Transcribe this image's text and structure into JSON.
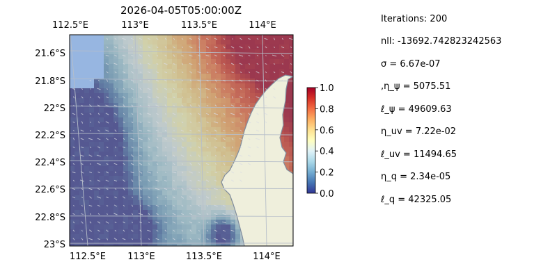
{
  "chart_data": {
    "type": "heatmap",
    "title": "2026-04-05T05:00:00Z",
    "x_ticks_top": [
      "112.5°E",
      "113°E",
      "113.5°E",
      "114°E"
    ],
    "x_ticks_bottom": [
      "112.5°E",
      "113°E",
      "113.5°E",
      "114°E"
    ],
    "y_ticks": [
      "21.6°S",
      "21.8°S",
      "22°S",
      "22.2°S",
      "22.4°S",
      "22.6°S",
      "22.8°S",
      "23°S"
    ],
    "x_tick_values": [
      112.5,
      113.0,
      113.5,
      114.0
    ],
    "y_tick_values": [
      -21.6,
      -21.8,
      -22.0,
      -22.2,
      -22.4,
      -22.6,
      -22.8,
      -23.0
    ],
    "xlim": [
      112.5,
      114.2
    ],
    "ylim": [
      -23.0,
      -21.47
    ],
    "grid": true,
    "colorbar": {
      "min": 0.0,
      "max": 1.0,
      "ticks": [
        "0.0",
        "0.2",
        "0.4",
        "0.6",
        "0.8",
        "1.0"
      ],
      "colormap": "RdYlBu_r"
    },
    "colors": {
      "land": "#efefdc",
      "ocean_mask": "#97b6e1",
      "coast": "#7f8c9e"
    }
  },
  "params": [
    "Iterations: 200",
    "nll: -13692.742823242563",
    "σ = 6.67e-07",
    ",η_ψ = 5075.51",
    "ℓ_ψ = 49609.63",
    "η_uv = 7.22e-02",
    "ℓ_uv = 11494.65",
    "η_q = 2.34e-05",
    "ℓ_q = 42325.05"
  ]
}
